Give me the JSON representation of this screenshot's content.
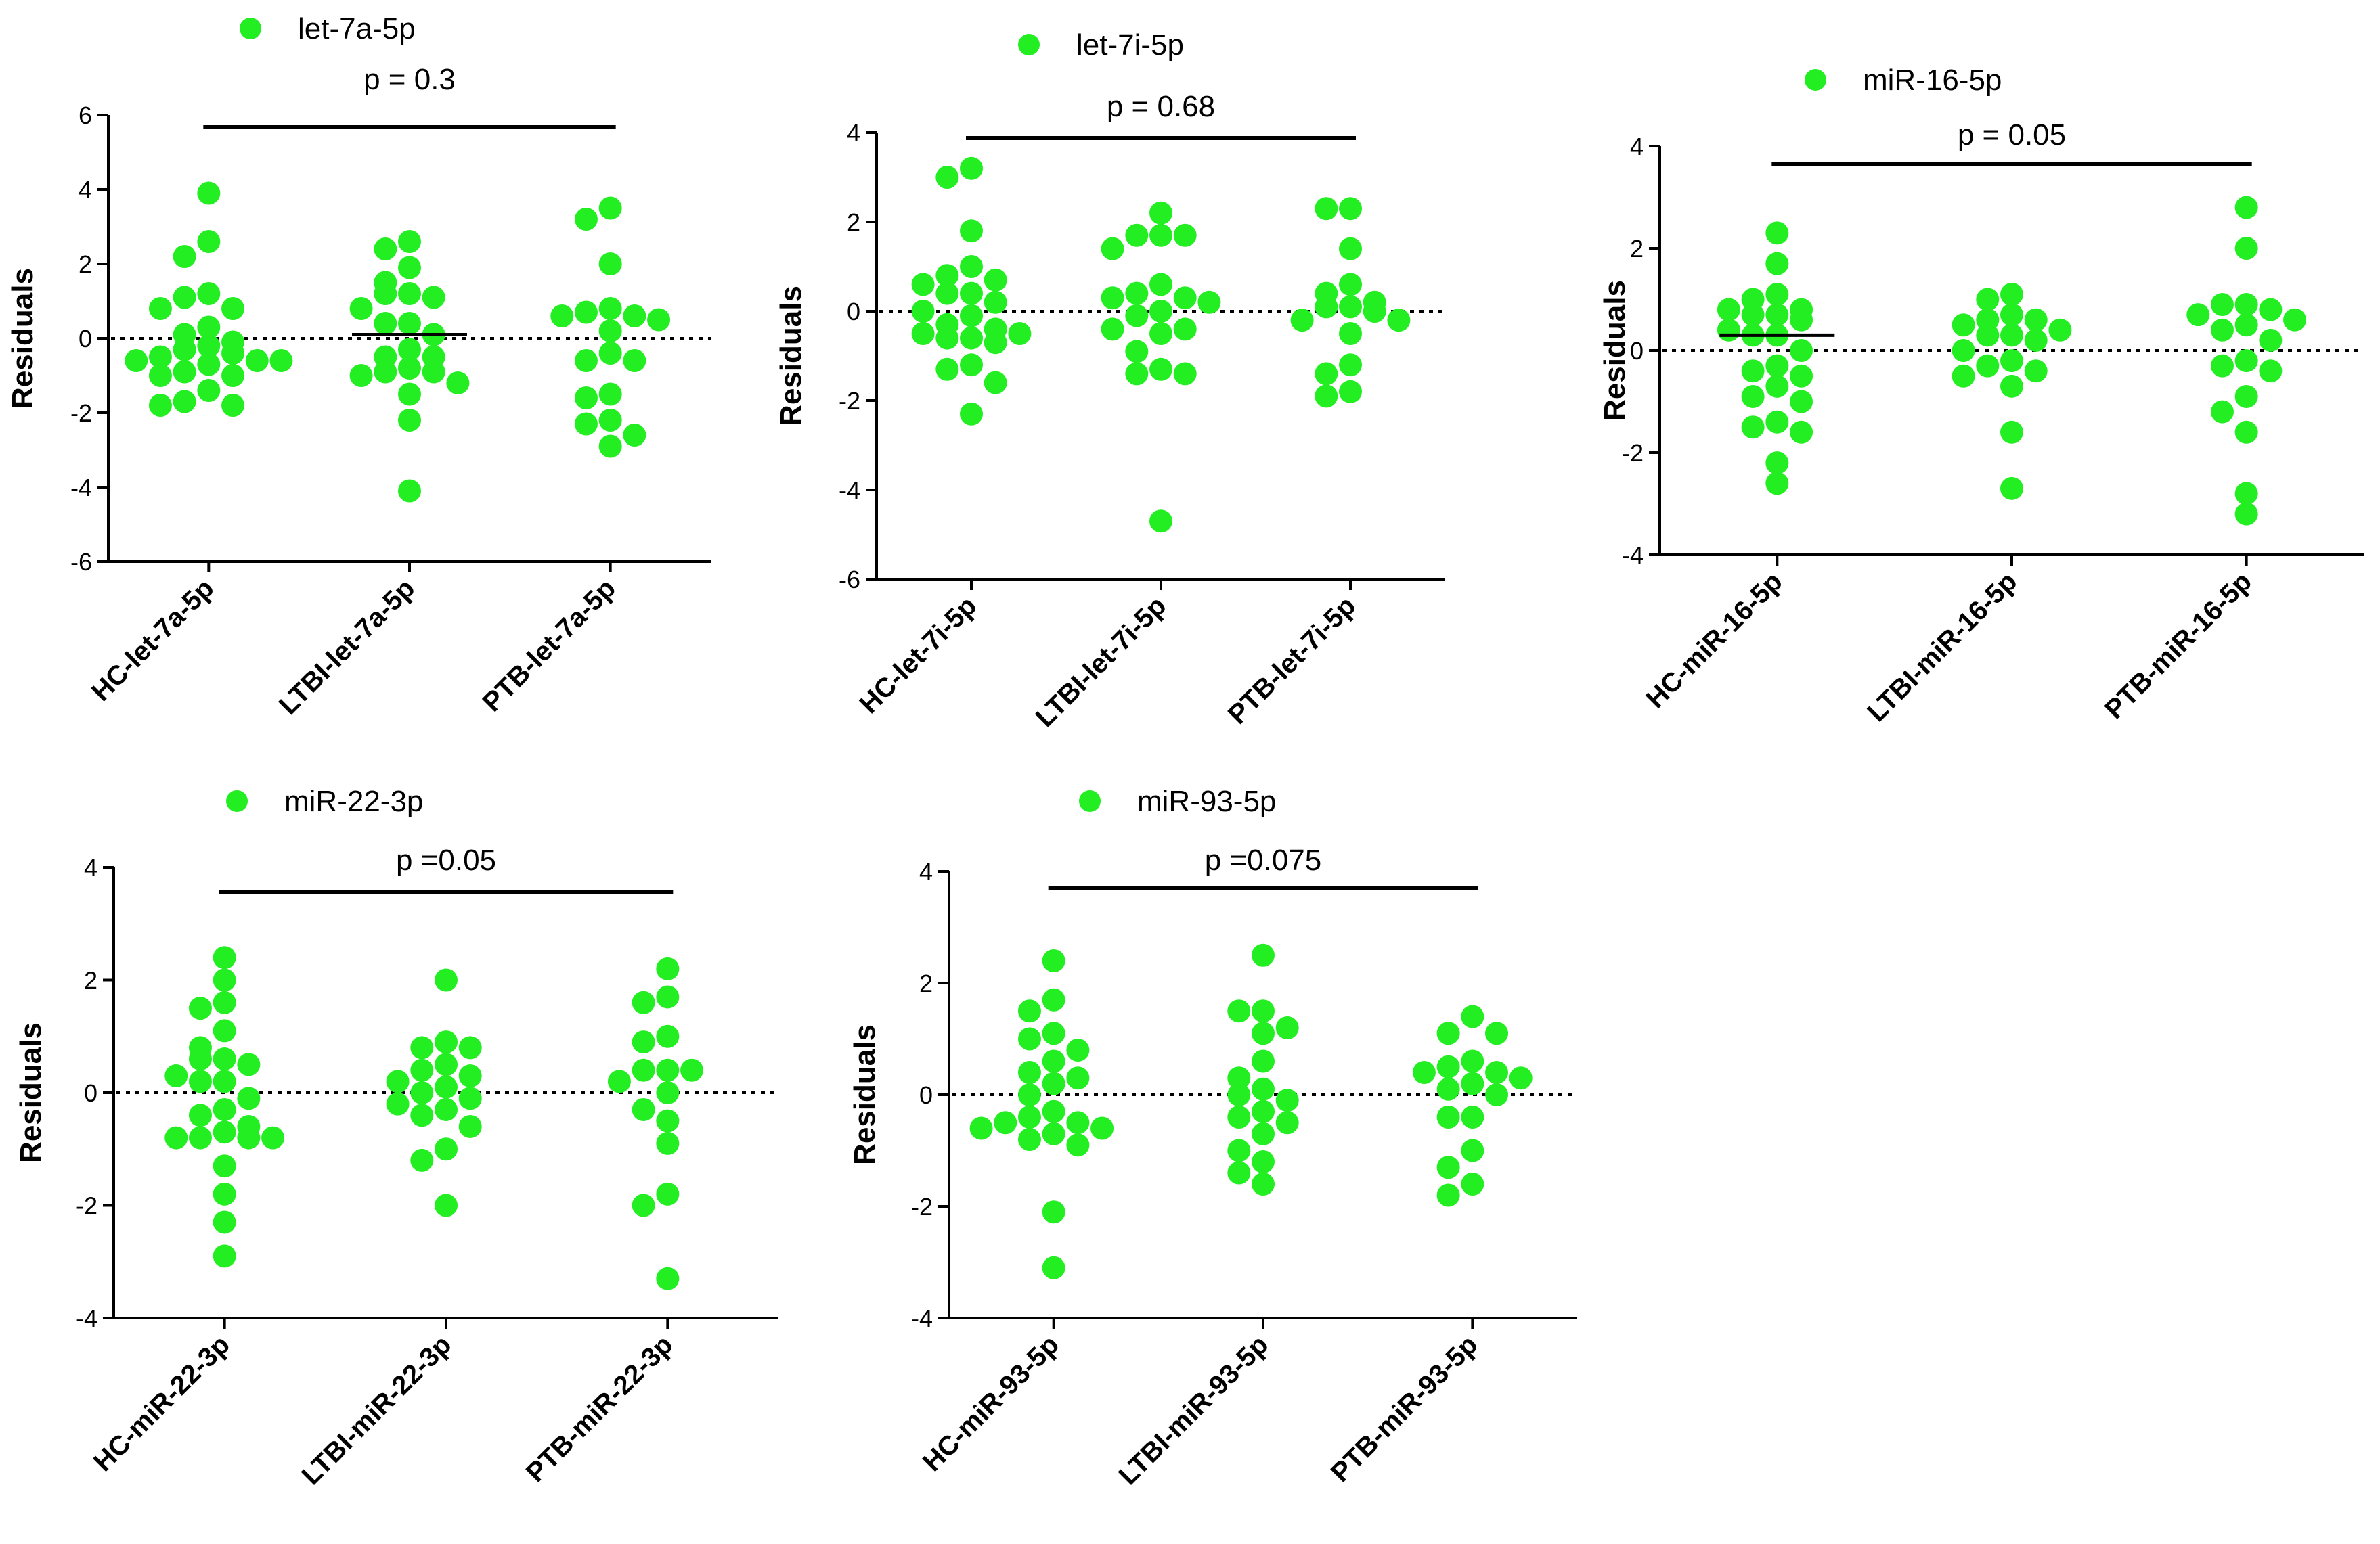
{
  "colors": {
    "point": "#22ee22",
    "axis": "#000000"
  },
  "chart_data": [
    {
      "type": "scatter",
      "legend": "let-7a-5p",
      "p_label": "p = 0.3",
      "ylabel": "Residuals",
      "ylim": [
        -6,
        6
      ],
      "yticks": [
        6,
        4,
        2,
        0,
        -2,
        -4,
        -6
      ],
      "categories": [
        "HC-let-7a-5p",
        "LTBI-let-7a-5p",
        "PTB-let-7a-5p"
      ],
      "groups": [
        [
          3.9,
          2.6,
          2.2,
          1.2,
          1.1,
          0.8,
          0.8,
          0.3,
          0.1,
          -0.1,
          -0.2,
          -0.3,
          -0.4,
          -0.5,
          -0.6,
          -0.6,
          -0.6,
          -0.7,
          -0.9,
          -1.0,
          -1.0,
          -1.4,
          -1.7,
          -1.8,
          -1.8
        ],
        [
          2.6,
          2.4,
          1.9,
          1.5,
          1.2,
          1.2,
          1.1,
          0.8,
          0.4,
          0.4,
          0.1,
          -0.3,
          -0.5,
          -0.5,
          -0.8,
          -0.9,
          -0.9,
          -1.0,
          -1.2,
          -1.5,
          -2.2,
          -4.1
        ],
        [
          3.5,
          3.2,
          2.0,
          0.8,
          0.7,
          0.6,
          0.6,
          0.5,
          0.2,
          -0.4,
          -0.6,
          -0.6,
          -1.5,
          -1.6,
          -2.2,
          -2.3,
          -2.6,
          -2.9
        ]
      ],
      "median_group": 1
    },
    {
      "type": "scatter",
      "legend": "let-7i-5p",
      "p_label": "p = 0.68",
      "ylabel": "Residuals",
      "ylim": [
        -6,
        4
      ],
      "yticks": [
        4,
        2,
        0,
        -2,
        -4,
        -6
      ],
      "categories": [
        "HC-let-7i-5p",
        "LTBI-let-7i-5p",
        "PTB-let-7i-5p"
      ],
      "groups": [
        [
          3.2,
          3.0,
          1.8,
          1.0,
          0.8,
          0.7,
          0.6,
          0.4,
          0.4,
          0.2,
          0.0,
          -0.1,
          -0.3,
          -0.4,
          -0.5,
          -0.5,
          -0.6,
          -0.6,
          -0.7,
          -1.2,
          -1.3,
          -1.6,
          -2.3
        ],
        [
          2.2,
          1.7,
          1.7,
          1.7,
          1.4,
          0.6,
          0.4,
          0.3,
          0.3,
          0.2,
          0.0,
          -0.1,
          -0.4,
          -0.4,
          -0.5,
          -0.9,
          -1.3,
          -1.4,
          -1.4,
          -4.7
        ],
        [
          2.3,
          2.3,
          1.4,
          0.6,
          0.4,
          0.2,
          0.1,
          0.1,
          0.0,
          -0.2,
          -0.2,
          -0.5,
          -1.2,
          -1.4,
          -1.8,
          -1.9
        ]
      ],
      "median_group": null
    },
    {
      "type": "scatter",
      "legend": "miR-16-5p",
      "p_label": "p = 0.05",
      "ylabel": "Residuals",
      "ylim": [
        -4,
        4
      ],
      "yticks": [
        4,
        2,
        0,
        -2,
        -4
      ],
      "categories": [
        "HC-miR-16-5p",
        "LTBI-miR-16-5p",
        "PTB-miR-16-5p"
      ],
      "groups": [
        [
          2.3,
          1.7,
          1.1,
          1.0,
          0.8,
          0.8,
          0.7,
          0.7,
          0.6,
          0.4,
          0.3,
          0.3,
          0.0,
          -0.3,
          -0.4,
          -0.5,
          -0.7,
          -0.9,
          -1.0,
          -1.4,
          -1.5,
          -1.6,
          -2.2,
          -2.6
        ],
        [
          1.1,
          1.0,
          0.7,
          0.6,
          0.6,
          0.5,
          0.4,
          0.3,
          0.3,
          0.2,
          0.0,
          -0.2,
          -0.3,
          -0.4,
          -0.5,
          -0.7,
          -1.6,
          -2.7
        ],
        [
          2.8,
          2.0,
          0.9,
          0.9,
          0.8,
          0.7,
          0.6,
          0.5,
          0.4,
          0.2,
          -0.2,
          -0.3,
          -0.4,
          -0.9,
          -1.2,
          -1.6,
          -2.8,
          -3.2
        ]
      ],
      "median_group": 0
    },
    {
      "type": "scatter",
      "legend": "miR-22-3p",
      "p_label": "p =0.05",
      "ylabel": "Residuals",
      "ylim": [
        -4,
        4
      ],
      "yticks": [
        4,
        2,
        0,
        -2,
        -4
      ],
      "categories": [
        "HC-miR-22-3p",
        "LTBI-miR-22-3p",
        "PTB-miR-22-3p"
      ],
      "groups": [
        [
          2.4,
          2.0,
          1.6,
          1.5,
          1.1,
          0.8,
          0.6,
          0.6,
          0.5,
          0.3,
          0.2,
          0.2,
          -0.1,
          -0.3,
          -0.4,
          -0.6,
          -0.7,
          -0.8,
          -0.8,
          -0.8,
          -0.8,
          -1.3,
          -1.8,
          -2.3,
          -2.9
        ],
        [
          2.0,
          0.9,
          0.8,
          0.8,
          0.5,
          0.4,
          0.3,
          0.2,
          0.1,
          0.0,
          -0.1,
          -0.2,
          -0.3,
          -0.4,
          -0.6,
          -1.0,
          -1.2,
          -2.0
        ],
        [
          2.2,
          1.7,
          1.6,
          1.0,
          0.9,
          0.4,
          0.4,
          0.4,
          0.2,
          0.0,
          -0.3,
          -0.5,
          -0.9,
          -1.8,
          -2.0,
          -3.3
        ]
      ],
      "median_group": null
    },
    {
      "type": "scatter",
      "legend": "miR-93-5p",
      "p_label": "p =0.075",
      "ylabel": "Residuals",
      "ylim": [
        -4,
        4
      ],
      "yticks": [
        4,
        2,
        0,
        -2,
        -4
      ],
      "categories": [
        "HC-miR-93-5p",
        "LTBI-miR-93-5p",
        "PTB-miR-93-5p"
      ],
      "groups": [
        [
          2.4,
          1.7,
          1.5,
          1.1,
          1.0,
          0.8,
          0.6,
          0.4,
          0.3,
          0.2,
          0.0,
          -0.3,
          -0.4,
          -0.5,
          -0.5,
          -0.6,
          -0.6,
          -0.7,
          -0.8,
          -0.9,
          -2.1,
          -3.1
        ],
        [
          2.5,
          1.5,
          1.5,
          1.2,
          1.1,
          0.6,
          0.3,
          0.1,
          0.0,
          -0.1,
          -0.3,
          -0.4,
          -0.5,
          -0.7,
          -1.0,
          -1.2,
          -1.4,
          -1.6
        ],
        [
          1.4,
          1.1,
          1.1,
          0.6,
          0.5,
          0.4,
          0.4,
          0.3,
          0.2,
          0.1,
          0.0,
          -0.4,
          -0.4,
          -1.0,
          -1.3,
          -1.6,
          -1.8
        ]
      ],
      "median_group": null
    }
  ]
}
